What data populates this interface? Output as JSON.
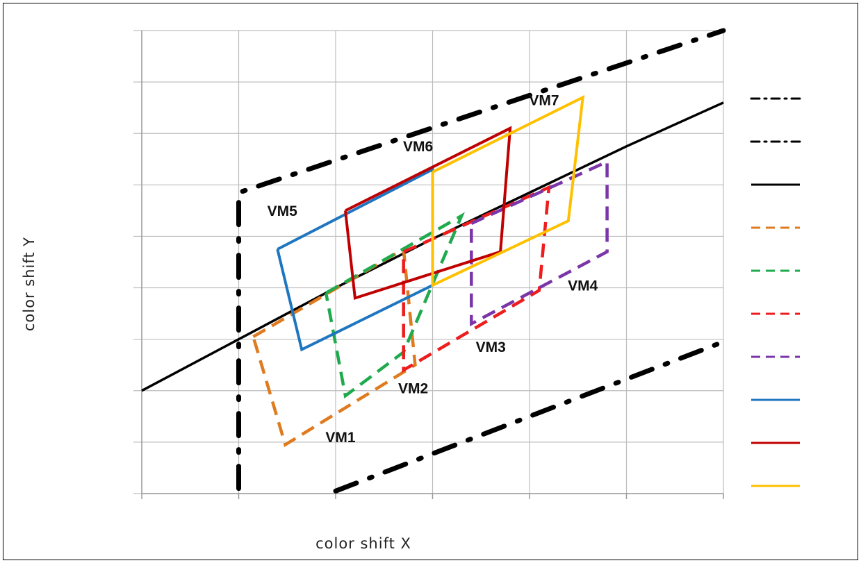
{
  "chart_data": {
    "type": "line",
    "title": "",
    "xlabel": "color shift X",
    "ylabel": "color shift Y",
    "xlim": [
      0,
      6
    ],
    "ylim": [
      0,
      9
    ],
    "x_gridlines": [
      0,
      1,
      2,
      3,
      4,
      5,
      6
    ],
    "y_gridlines": [
      0,
      1,
      2,
      3,
      4,
      5,
      6,
      7,
      8,
      9
    ],
    "grid": true,
    "legend": {
      "placement": "right",
      "text_visible": false
    },
    "colors": {
      "boundary": "#000000",
      "center": "#000000",
      "VM1": "#E07A1E",
      "VM2": "#1FAA4E",
      "VM3": "#EE1C1C",
      "VM4": "#7A35A8",
      "VM5": "#1F76C0",
      "VM6": "#C00000",
      "VM7": "#FFC000"
    },
    "series": [
      {
        "name": "",
        "style": "dashdot",
        "points": [
          [
            1,
            0.1
          ],
          [
            1,
            5.85
          ],
          [
            6,
            9
          ]
        ]
      },
      {
        "name": "",
        "style": "dashdot",
        "points": [
          [
            2,
            0.05
          ],
          [
            6,
            2.95
          ]
        ]
      },
      {
        "name": "",
        "style": "solid",
        "points": [
          [
            0,
            2
          ],
          [
            1,
            3
          ],
          [
            2,
            4
          ],
          [
            3,
            4.95
          ],
          [
            4,
            5.85
          ],
          [
            5,
            6.75
          ],
          [
            6,
            7.6
          ]
        ]
      },
      {
        "name": "VM1",
        "style": "dashed",
        "color_key": "VM1",
        "points": [
          [
            1.15,
            3.05
          ],
          [
            2.7,
            4.75
          ],
          [
            2.82,
            2.5
          ],
          [
            1.48,
            0.95
          ],
          [
            1.15,
            3.05
          ]
        ]
      },
      {
        "name": "VM2",
        "style": "dashed",
        "color_key": "VM2",
        "points": [
          [
            1.9,
            3.9
          ],
          [
            3.3,
            5.4
          ],
          [
            2.7,
            2.75
          ],
          [
            2.1,
            1.9
          ],
          [
            1.9,
            3.9
          ]
        ]
      },
      {
        "name": "VM3",
        "style": "dashed",
        "color_key": "VM3",
        "points": [
          [
            2.7,
            4.7
          ],
          [
            4.2,
            5.95
          ],
          [
            4.1,
            3.95
          ],
          [
            2.7,
            2.4
          ],
          [
            2.7,
            4.7
          ]
        ]
      },
      {
        "name": "VM4",
        "style": "dashed",
        "color_key": "VM4",
        "points": [
          [
            3.4,
            5.25
          ],
          [
            4.8,
            6.45
          ],
          [
            4.8,
            4.7
          ],
          [
            3.4,
            3.3
          ],
          [
            3.4,
            5.25
          ]
        ]
      },
      {
        "name": "VM5",
        "style": "solid",
        "color_key": "VM5",
        "points": [
          [
            1.4,
            4.75
          ],
          [
            3,
            6.3
          ],
          [
            3,
            4.05
          ],
          [
            1.65,
            2.8
          ],
          [
            1.4,
            4.75
          ]
        ]
      },
      {
        "name": "VM6",
        "style": "solid",
        "color_key": "VM6",
        "points": [
          [
            2.1,
            5.5
          ],
          [
            3.8,
            7.1
          ],
          [
            3.7,
            4.7
          ],
          [
            2.2,
            3.8
          ],
          [
            2.1,
            5.5
          ]
        ]
      },
      {
        "name": "VM7",
        "style": "solid",
        "color_key": "VM7",
        "points": [
          [
            3,
            6.25
          ],
          [
            4.55,
            7.7
          ],
          [
            4.4,
            5.3
          ],
          [
            3,
            4.05
          ],
          [
            3,
            6.25
          ]
        ]
      }
    ],
    "annotations": [
      {
        "text": "VM1",
        "x": 2.05,
        "y": 1.0
      },
      {
        "text": "VM2",
        "x": 2.8,
        "y": 1.95
      },
      {
        "text": "VM3",
        "x": 3.6,
        "y": 2.75
      },
      {
        "text": "VM4",
        "x": 4.55,
        "y": 3.95
      },
      {
        "text": "VM5",
        "x": 1.45,
        "y": 5.4
      },
      {
        "text": "VM6",
        "x": 2.85,
        "y": 6.65
      },
      {
        "text": "VM7",
        "x": 4.15,
        "y": 7.55
      }
    ]
  }
}
